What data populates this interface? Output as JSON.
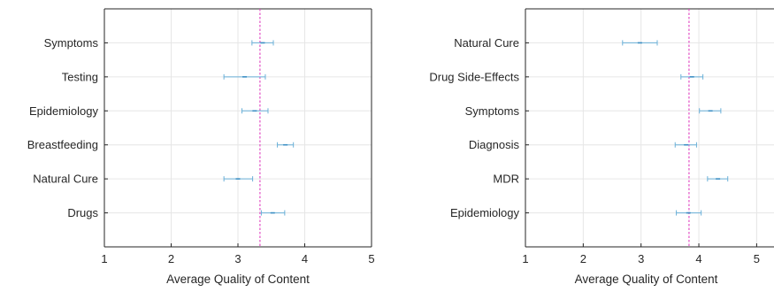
{
  "chart_data": [
    {
      "type": "errorbar",
      "xlabel": "Average Quality of Content",
      "ylabel": "",
      "xlim": [
        1,
        5
      ],
      "xticks": [
        "1",
        "2",
        "3",
        "4",
        "5"
      ],
      "grid": true,
      "categories": [
        "Symptoms",
        "Testing",
        "Epidemiology",
        "Breastfeeding",
        "Natural Cure",
        "Drugs"
      ],
      "means": [
        3.37,
        3.1,
        3.25,
        3.71,
        3.0,
        3.52
      ],
      "lower": [
        3.21,
        2.79,
        3.06,
        3.59,
        2.79,
        3.35
      ],
      "upper": [
        3.53,
        3.41,
        3.45,
        3.83,
        3.22,
        3.7
      ],
      "reference_line": 3.33,
      "colors": {
        "errorbar": "#6ab0d8",
        "reference": "#e040c0",
        "grid": "#e6e6e6",
        "axis": "#262626"
      }
    },
    {
      "type": "errorbar",
      "xlabel": "Average Quality of Content",
      "ylabel": "",
      "xlim": [
        1,
        5.3
      ],
      "xticks": [
        "1",
        "2",
        "3",
        "4",
        "5"
      ],
      "grid": true,
      "categories": [
        "Natural Cure",
        "Drug Side-Effects",
        "Symptoms",
        "Diagnosis",
        "MDR",
        "Epidemiology"
      ],
      "means": [
        2.98,
        3.88,
        4.2,
        3.78,
        4.33,
        3.82
      ],
      "lower": [
        2.68,
        3.69,
        4.01,
        3.59,
        4.15,
        3.61
      ],
      "upper": [
        3.28,
        4.07,
        4.38,
        3.96,
        4.5,
        4.04
      ],
      "reference_line": 3.83,
      "colors": {
        "errorbar": "#6ab0d8",
        "reference": "#e040c0",
        "grid": "#e6e6e6",
        "axis": "#262626"
      }
    }
  ]
}
